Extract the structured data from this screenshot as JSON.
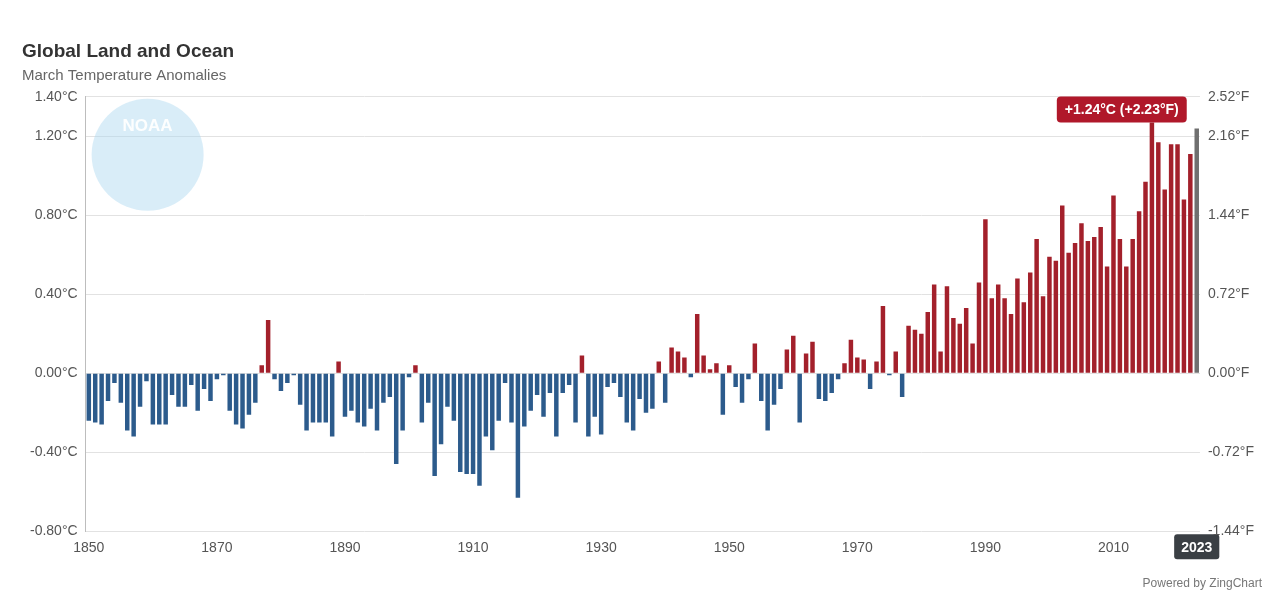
{
  "chart_data": {
    "type": "bar",
    "title": "Global Land and Ocean",
    "subtitle": "March Temperature Anomalies",
    "logo": "NOAA",
    "credit": "Powered by ZingChart",
    "categories": [
      "1850",
      null,
      null,
      null,
      null,
      null,
      null,
      null,
      null,
      null,
      null,
      null,
      null,
      null,
      null,
      null,
      null,
      null,
      null,
      null,
      "1870",
      null,
      null,
      null,
      null,
      null,
      null,
      null,
      null,
      null,
      null,
      null,
      null,
      null,
      null,
      null,
      null,
      null,
      null,
      null,
      "1890",
      null,
      null,
      null,
      null,
      null,
      null,
      null,
      null,
      null,
      null,
      null,
      null,
      null,
      null,
      null,
      null,
      null,
      null,
      null,
      "1910",
      null,
      null,
      null,
      null,
      null,
      null,
      null,
      null,
      null,
      null,
      null,
      null,
      null,
      null,
      null,
      null,
      null,
      null,
      null,
      "1930",
      null,
      null,
      null,
      null,
      null,
      null,
      null,
      null,
      null,
      null,
      null,
      null,
      null,
      null,
      null,
      null,
      null,
      null,
      null,
      "1950",
      null,
      null,
      null,
      null,
      null,
      null,
      null,
      null,
      null,
      null,
      null,
      null,
      null,
      null,
      null,
      null,
      null,
      null,
      null,
      "1970",
      null,
      null,
      null,
      null,
      null,
      null,
      null,
      null,
      null,
      null,
      null,
      null,
      null,
      null,
      null,
      null,
      null,
      null,
      null,
      "1990",
      null,
      null,
      null,
      null,
      null,
      null,
      null,
      null,
      null,
      null,
      null,
      null,
      null,
      null,
      null,
      null,
      null,
      null,
      null,
      "2010",
      null,
      null,
      null,
      null,
      null,
      null,
      null,
      null,
      null,
      null,
      null,
      null,
      "2023"
    ],
    "values": [
      -0.24,
      -0.25,
      -0.26,
      -0.14,
      -0.05,
      -0.15,
      -0.29,
      -0.32,
      -0.17,
      -0.04,
      -0.26,
      -0.26,
      -0.26,
      -0.11,
      -0.17,
      -0.17,
      -0.06,
      -0.19,
      -0.08,
      -0.14,
      -0.03,
      -0.01,
      -0.19,
      -0.26,
      -0.28,
      -0.21,
      -0.15,
      0.04,
      0.27,
      -0.03,
      -0.09,
      -0.05,
      -0.01,
      -0.16,
      -0.29,
      -0.25,
      -0.25,
      -0.25,
      -0.32,
      0.06,
      -0.22,
      -0.19,
      -0.25,
      -0.27,
      -0.18,
      -0.29,
      -0.15,
      -0.12,
      -0.46,
      -0.29,
      -0.02,
      0.04,
      -0.25,
      -0.15,
      -0.52,
      -0.36,
      -0.17,
      -0.24,
      -0.5,
      -0.51,
      -0.51,
      -0.57,
      -0.32,
      -0.39,
      -0.24,
      -0.05,
      -0.25,
      -0.63,
      -0.27,
      -0.19,
      -0.11,
      -0.22,
      -0.1,
      -0.32,
      -0.1,
      -0.06,
      -0.25,
      0.09,
      -0.32,
      -0.22,
      -0.31,
      -0.07,
      -0.05,
      -0.12,
      -0.25,
      -0.29,
      -0.13,
      -0.2,
      -0.18,
      0.06,
      -0.15,
      0.13,
      0.11,
      0.08,
      -0.02,
      0.3,
      0.09,
      0.02,
      0.05,
      -0.21,
      0.04,
      -0.07,
      -0.15,
      -0.03,
      0.15,
      -0.14,
      -0.29,
      -0.16,
      -0.08,
      0.12,
      0.19,
      -0.25,
      0.1,
      0.16,
      -0.13,
      -0.14,
      -0.1,
      -0.03,
      0.05,
      0.17,
      0.08,
      0.07,
      -0.08,
      0.06,
      0.34,
      -0.01,
      0.11,
      -0.12,
      0.24,
      0.22,
      0.2,
      0.31,
      0.45,
      0.11,
      0.44,
      0.28,
      0.25,
      0.33,
      0.15,
      0.46,
      0.78,
      0.38,
      0.45,
      0.38,
      0.3,
      0.48,
      0.36,
      0.51,
      0.68,
      0.39,
      0.59,
      0.57,
      0.85,
      0.61,
      0.66,
      0.76,
      0.67,
      0.69,
      0.74,
      0.54,
      0.9,
      0.68,
      0.54,
      0.68,
      0.82,
      0.97,
      1.27,
      1.17,
      0.93,
      1.16,
      1.16,
      0.88,
      1.11,
      1.24
    ],
    "colors": [
      "#2c5b8c",
      "#2c5b8c",
      "#2c5b8c",
      "#2c5b8c",
      "#2c5b8c",
      "#2c5b8c",
      "#2c5b8c",
      "#2c5b8c",
      "#2c5b8c",
      "#2c5b8c",
      "#2c5b8c",
      "#2c5b8c",
      "#2c5b8c",
      "#2c5b8c",
      "#2c5b8c",
      "#2c5b8c",
      "#2c5b8c",
      "#2c5b8c",
      "#2c5b8c",
      "#2c5b8c",
      "#2c5b8c",
      "#2c5b8c",
      "#2c5b8c",
      "#2c5b8c",
      "#2c5b8c",
      "#2c5b8c",
      "#2c5b8c",
      "#a3202b",
      "#a3202b",
      "#2c5b8c",
      "#2c5b8c",
      "#2c5b8c",
      "#2c5b8c",
      "#2c5b8c",
      "#2c5b8c",
      "#2c5b8c",
      "#2c5b8c",
      "#2c5b8c",
      "#2c5b8c",
      "#a3202b",
      "#2c5b8c",
      "#2c5b8c",
      "#2c5b8c",
      "#2c5b8c",
      "#2c5b8c",
      "#2c5b8c",
      "#2c5b8c",
      "#2c5b8c",
      "#2c5b8c",
      "#2c5b8c",
      "#2c5b8c",
      "#a3202b",
      "#2c5b8c",
      "#2c5b8c",
      "#2c5b8c",
      "#2c5b8c",
      "#2c5b8c",
      "#2c5b8c",
      "#2c5b8c",
      "#2c5b8c",
      "#2c5b8c",
      "#2c5b8c",
      "#2c5b8c",
      "#2c5b8c",
      "#2c5b8c",
      "#2c5b8c",
      "#2c5b8c",
      "#2c5b8c",
      "#2c5b8c",
      "#2c5b8c",
      "#2c5b8c",
      "#2c5b8c",
      "#2c5b8c",
      "#2c5b8c",
      "#2c5b8c",
      "#2c5b8c",
      "#2c5b8c",
      "#a3202b",
      "#2c5b8c",
      "#2c5b8c",
      "#2c5b8c",
      "#2c5b8c",
      "#2c5b8c",
      "#2c5b8c",
      "#2c5b8c",
      "#2c5b8c",
      "#2c5b8c",
      "#2c5b8c",
      "#2c5b8c",
      "#a3202b",
      "#2c5b8c",
      "#a3202b",
      "#a3202b",
      "#a3202b",
      "#2c5b8c",
      "#a3202b",
      "#a3202b",
      "#a3202b",
      "#a3202b",
      "#2c5b8c",
      "#a3202b",
      "#2c5b8c",
      "#2c5b8c",
      "#2c5b8c",
      "#a3202b",
      "#2c5b8c",
      "#2c5b8c",
      "#2c5b8c",
      "#2c5b8c",
      "#a3202b",
      "#a3202b",
      "#2c5b8c",
      "#a3202b",
      "#a3202b",
      "#2c5b8c",
      "#2c5b8c",
      "#2c5b8c",
      "#2c5b8c",
      "#a3202b",
      "#a3202b",
      "#a3202b",
      "#a3202b",
      "#2c5b8c",
      "#a3202b",
      "#a3202b",
      "#2c5b8c",
      "#a3202b",
      "#2c5b8c",
      "#a3202b",
      "#a3202b",
      "#a3202b",
      "#a3202b",
      "#a3202b",
      "#a3202b",
      "#a3202b",
      "#a3202b",
      "#a3202b",
      "#a3202b",
      "#a3202b",
      "#a3202b",
      "#a3202b",
      "#a3202b",
      "#a3202b",
      "#a3202b",
      "#a3202b",
      "#a3202b",
      "#a3202b",
      "#a3202b",
      "#a3202b",
      "#a3202b",
      "#a3202b",
      "#a3202b",
      "#a3202b",
      "#a3202b",
      "#a3202b",
      "#a3202b",
      "#a3202b",
      "#a3202b",
      "#a3202b",
      "#a3202b",
      "#a3202b",
      "#a3202b",
      "#a3202b",
      "#a3202b",
      "#a3202b",
      "#a3202b",
      "#a3202b",
      "#a3202b",
      "#a3202b",
      "#a3202b",
      "#a3202b",
      "#a3202b",
      "#a3202b",
      "#6f6f6f"
    ],
    "ylim": [
      -0.8,
      1.4
    ],
    "yticks": [
      {
        "value": -0.8,
        "label": "-0.80°C"
      },
      {
        "value": -0.4,
        "label": "-0.40°C"
      },
      {
        "value": 0,
        "label": "0.00°C"
      },
      {
        "value": 0.4,
        "label": "0.40°C"
      },
      {
        "value": 0.8,
        "label": "0.80°C"
      },
      {
        "value": 1.2,
        "label": "1.20°C"
      },
      {
        "value": 1.4,
        "label": "1.40°C"
      }
    ],
    "y2lim": [
      -1.44,
      2.52
    ],
    "y2ticks": [
      {
        "value": -1.44,
        "label": "-1.44°F"
      },
      {
        "value": -0.72,
        "label": "-0.72°F"
      },
      {
        "value": 0,
        "label": "0.00°F"
      },
      {
        "value": 0.72,
        "label": "0.72°F"
      },
      {
        "value": 1.44,
        "label": "1.44°F"
      },
      {
        "value": 2.16,
        "label": "2.16°F"
      },
      {
        "value": 2.52,
        "label": "2.52°F"
      }
    ],
    "grid": true,
    "annotations": [
      {
        "text": "+1.24°C (+2.23°F)",
        "category": "2023",
        "value": 1.24
      }
    ]
  }
}
